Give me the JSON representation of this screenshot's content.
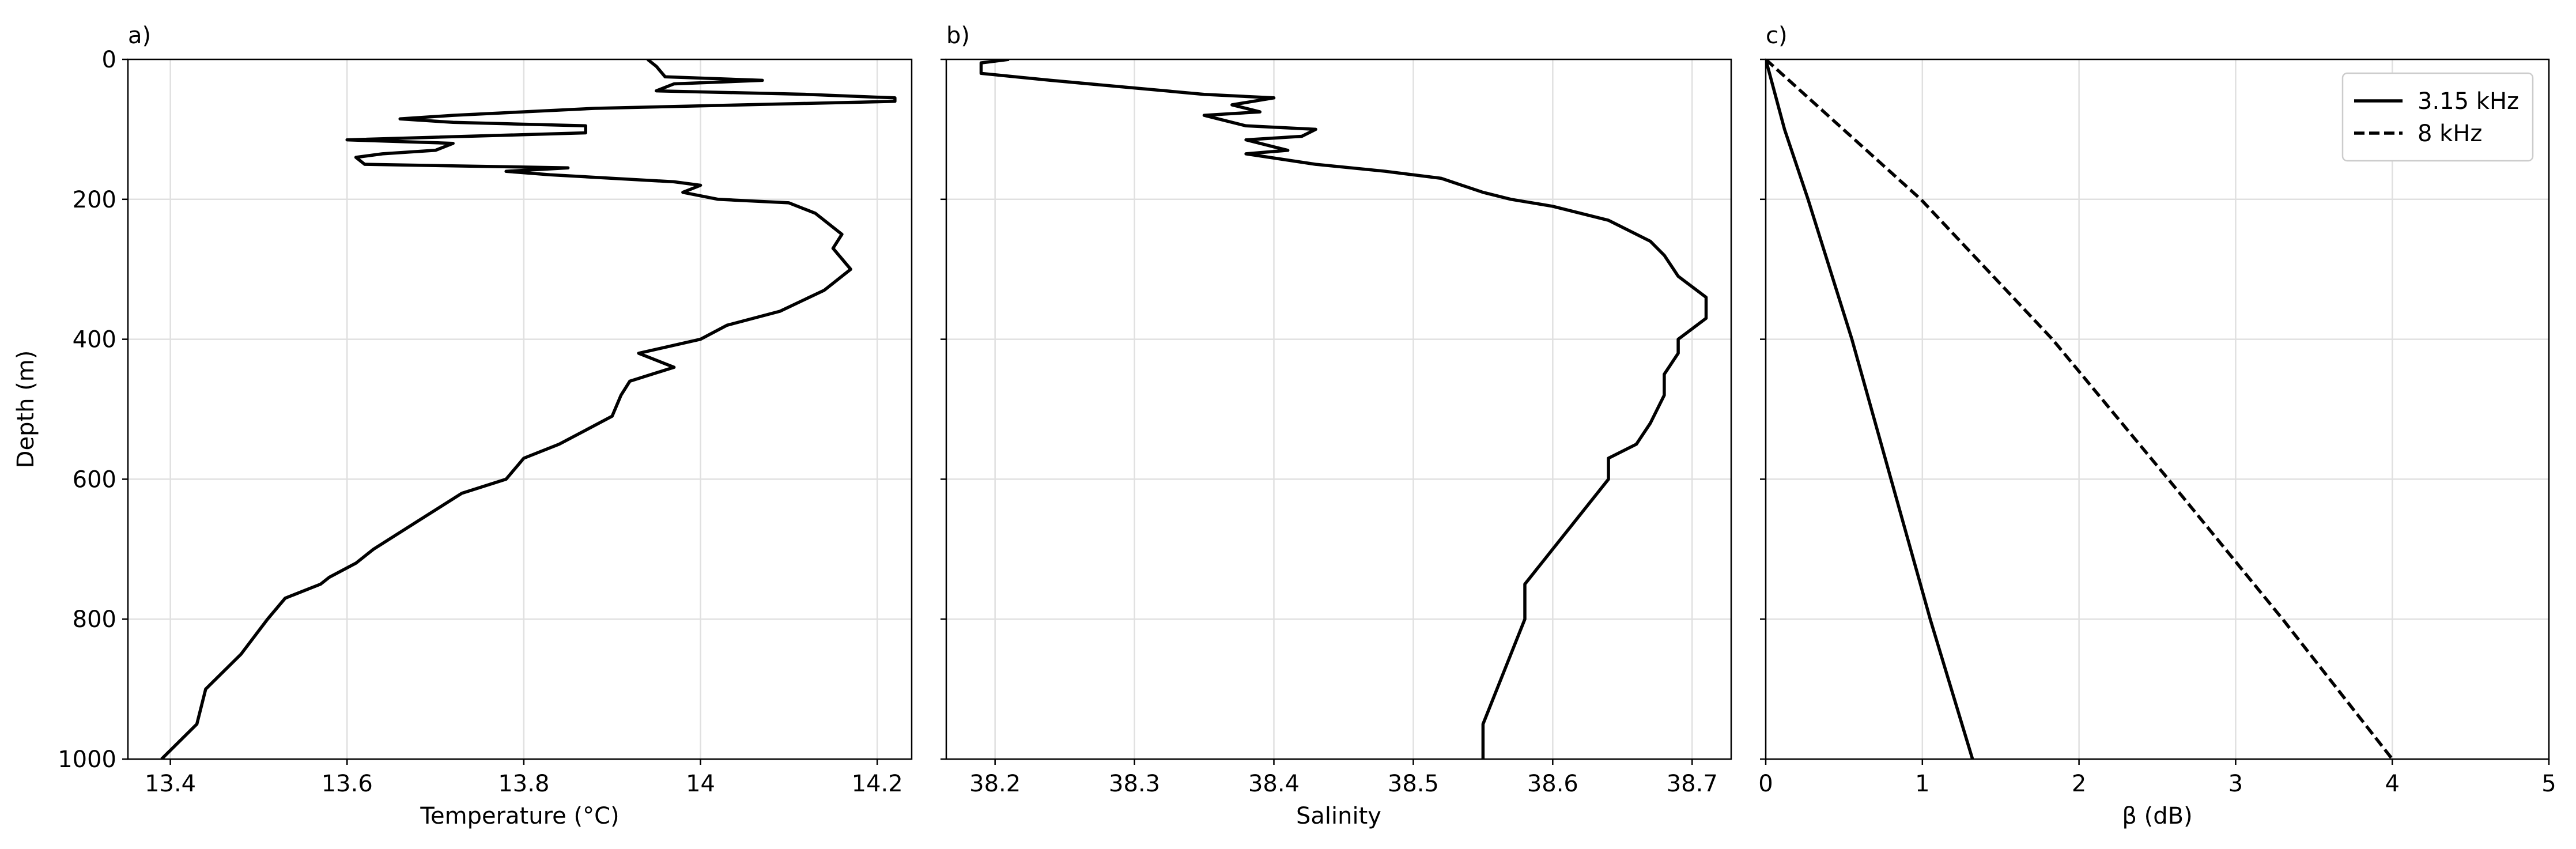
{
  "chart_data": [
    {
      "type": "line",
      "title": "a)",
      "xlabel": "Temperature (°C)",
      "ylabel": "Depth (m)",
      "invert_y": true,
      "grid": true,
      "xlim": [
        13.352,
        14.239
      ],
      "xticks": [
        13.4,
        13.6,
        13.8,
        14.0,
        14.2
      ],
      "ylim": [
        0,
        1000
      ],
      "yticks": [
        0,
        200,
        400,
        600,
        800,
        1000
      ],
      "series": [
        {
          "color": "#000000",
          "linestyle": "solid",
          "x": [
            13.94,
            13.95,
            13.96,
            14.07,
            13.97,
            13.95,
            14.12,
            14.22,
            14.22,
            14.05,
            13.88,
            13.72,
            13.66,
            13.72,
            13.87,
            13.87,
            13.6,
            13.72,
            13.7,
            13.64,
            13.61,
            13.62,
            13.85,
            13.78,
            13.83,
            13.97,
            14.0,
            13.98,
            14.02,
            14.1,
            14.13,
            14.16,
            14.15,
            14.17,
            14.14,
            14.09,
            14.03,
            14.0,
            13.93,
            13.97,
            13.92,
            13.91,
            13.9,
            13.87,
            13.84,
            13.8,
            13.78,
            13.73,
            13.68,
            13.63,
            13.61,
            13.58,
            13.57,
            13.53,
            13.51,
            13.48,
            13.44,
            13.43,
            13.39
          ],
          "y": [
            0,
            10,
            25,
            30,
            35,
            45,
            50,
            55,
            60,
            65,
            70,
            80,
            85,
            90,
            95,
            105,
            115,
            120,
            130,
            135,
            140,
            150,
            155,
            160,
            165,
            175,
            180,
            190,
            200,
            205,
            220,
            250,
            270,
            300,
            330,
            360,
            380,
            400,
            420,
            440,
            460,
            480,
            510,
            530,
            550,
            570,
            600,
            620,
            660,
            700,
            720,
            740,
            750,
            770,
            800,
            850,
            900,
            950,
            1000
          ]
        }
      ]
    },
    {
      "type": "line",
      "title": "b)",
      "xlabel": "Salinity",
      "invert_y": true,
      "grid": true,
      "xlim": [
        38.165,
        38.728
      ],
      "xticks": [
        38.2,
        38.3,
        38.4,
        38.5,
        38.6,
        38.7
      ],
      "ylim": [
        0,
        1000
      ],
      "series": [
        {
          "color": "#000000",
          "linestyle": "solid",
          "x": [
            38.21,
            38.19,
            38.19,
            38.24,
            38.35,
            38.4,
            38.37,
            38.39,
            38.35,
            38.36,
            38.38,
            38.43,
            38.42,
            38.38,
            38.4,
            38.41,
            38.38,
            38.43,
            38.48,
            38.52,
            38.55,
            38.57,
            38.6,
            38.64,
            38.67,
            38.68,
            38.69,
            38.71,
            38.71,
            38.69,
            38.69,
            38.68,
            38.68,
            38.67,
            38.66,
            38.64,
            38.64,
            38.62,
            38.6,
            38.58,
            38.58,
            38.57,
            38.56,
            38.55,
            38.55
          ],
          "y": [
            0,
            5,
            20,
            30,
            50,
            55,
            65,
            75,
            80,
            85,
            95,
            100,
            110,
            115,
            125,
            130,
            135,
            150,
            160,
            170,
            190,
            200,
            210,
            230,
            260,
            280,
            310,
            340,
            370,
            400,
            420,
            450,
            480,
            520,
            550,
            570,
            600,
            650,
            700,
            750,
            800,
            850,
            900,
            950,
            1000
          ]
        }
      ]
    },
    {
      "type": "line",
      "title": "c)",
      "xlabel": "β (dB)",
      "invert_y": true,
      "grid": true,
      "legend": "upper right",
      "xlim": [
        0,
        5
      ],
      "xticks": [
        0,
        1,
        2,
        3,
        4,
        5
      ],
      "ylim": [
        0,
        1000
      ],
      "series": [
        {
          "name": "3.15 kHz",
          "color": "#000000",
          "linestyle": "solid",
          "x": [
            0,
            0.12,
            0.27,
            0.55,
            0.8,
            1.05,
            1.32
          ],
          "y": [
            0,
            100,
            200,
            400,
            600,
            800,
            1000
          ]
        },
        {
          "name": "8 kHz",
          "color": "#000000",
          "linestyle": "dashed",
          "x": [
            0,
            0.99,
            1.83,
            2.57,
            3.3,
            4.0
          ],
          "y": [
            0,
            200,
            400,
            600,
            800,
            1000
          ]
        }
      ]
    }
  ]
}
